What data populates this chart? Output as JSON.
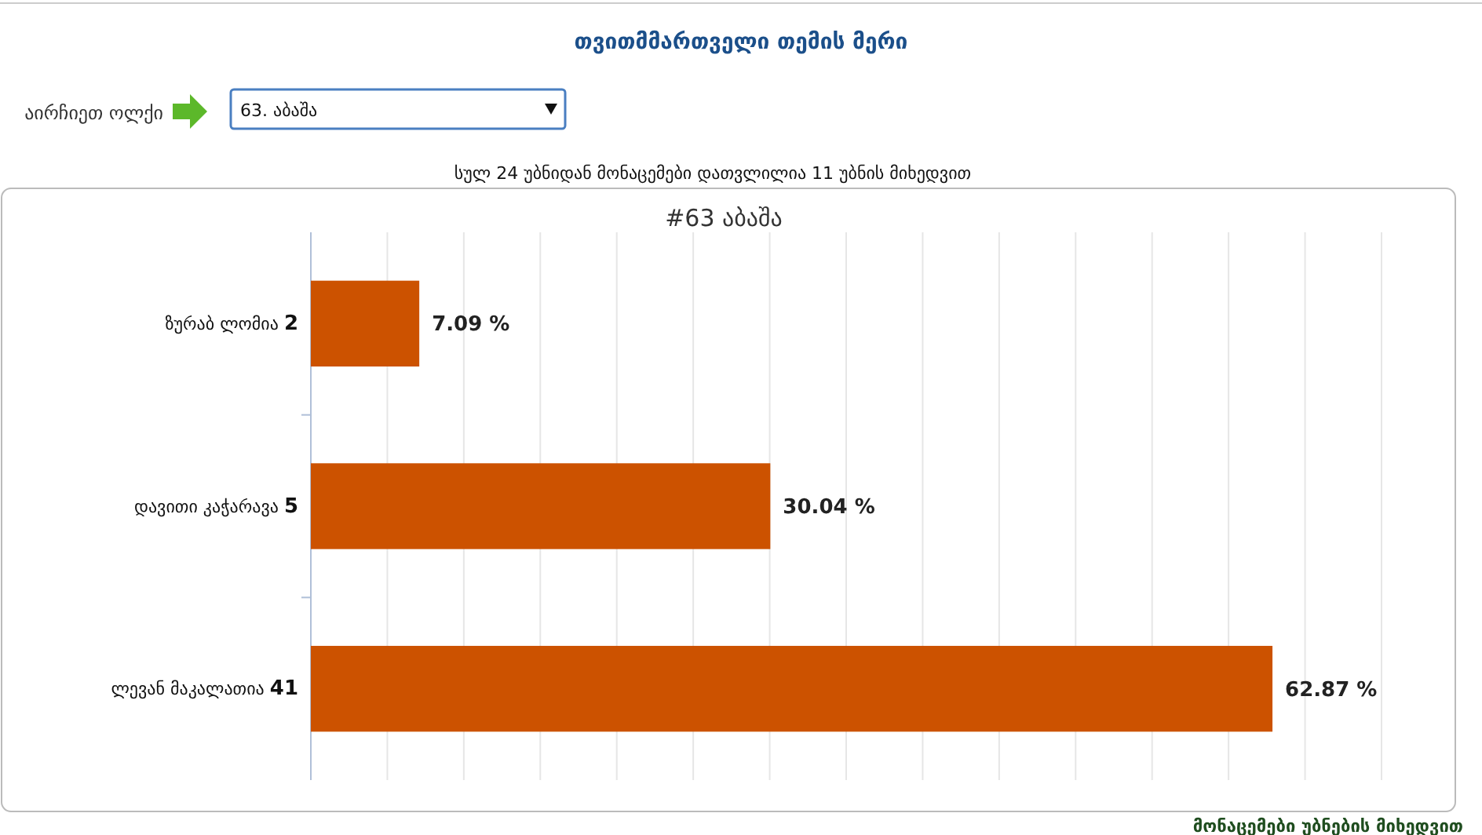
{
  "chart_data": {
    "type": "bar",
    "orientation": "horizontal",
    "title": "თვითმმართველი თემის მერი",
    "subtitle": "სულ 24 უბნიდან მონაცემები დათვლილია 11 უბნის მიხედვით",
    "annotations": [
      "აირჩიეთ ოლქი",
      "63. აბაშა",
      "#63 აბაშა",
      "მონაცემები უბნების მიხედვით"
    ],
    "categories": [
      "ზურაბ ლომია 2",
      "დავითი კაჭარავა 5",
      "ლევან მაკალათია 41"
    ],
    "values": [
      7.09,
      30.04,
      62.87
    ],
    "color": "#cc5200",
    "value_labels": [
      "7.09 %",
      "30.04 %",
      "62.87 %"
    ],
    "xlim": [
      0,
      70
    ],
    "xticks": [
      {
        "value": 0,
        "label": null
      },
      {
        "value": 5,
        "label": null
      },
      {
        "value": 10,
        "label": null
      },
      {
        "value": 15,
        "label": null
      },
      {
        "value": 20,
        "label": null
      },
      {
        "value": 25,
        "label": null
      },
      {
        "value": 30,
        "label": null
      },
      {
        "value": 35,
        "label": null
      },
      {
        "value": 40,
        "label": null
      },
      {
        "value": 45,
        "label": null
      },
      {
        "value": 50,
        "label": null
      },
      {
        "value": 55,
        "label": null
      },
      {
        "value": 60,
        "label": null
      },
      {
        "value": 65,
        "label": null
      },
      {
        "value": 70,
        "label": null
      }
    ],
    "grid": "x",
    "tick_labels": "y"
  }
}
